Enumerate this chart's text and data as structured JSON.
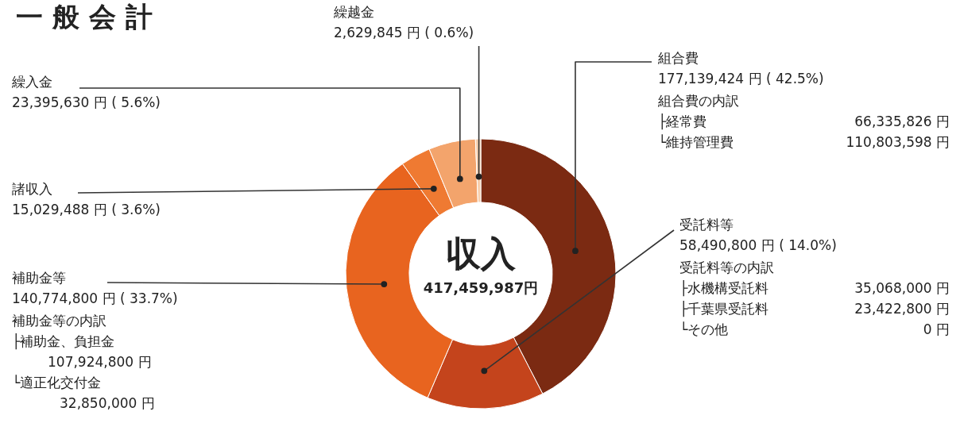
{
  "chart_data": {
    "type": "donut",
    "title": "一 般 会 計",
    "categories": [
      "組合費",
      "受託料等",
      "補助金等",
      "諸収入",
      "繰入金",
      "繰越金"
    ],
    "values": [
      177139424,
      58490800,
      140774800,
      15029488,
      23395630,
      2629845
    ],
    "colors": [
      "#7b2a12",
      "#c4441c",
      "#e8641f",
      "#ef7a32",
      "#f3a46c",
      "#f7cfae"
    ],
    "value_labels": [
      "177,139,424 円 ( 42.5%)",
      "58,490,800 円 ( 14.0%)",
      "140,774,800 円 ( 33.7%)",
      "15,029,488 円 ( 3.6%)",
      "23,395,630 円 ( 5.6%)",
      "2,629,845 円 ( 0.6%)"
    ],
    "annotations": [
      "収入",
      "417,459,987円",
      "組合費の内訳",
      "├経常費",
      "66,335,826 円",
      "└維持管理費",
      "110,803,598 円",
      "受託料等の内訳",
      "├水機構受託料",
      "35,068,000 円",
      "├千葉県受託料",
      "23,422,800 円",
      "└その他",
      "0 円",
      "補助金等の内訳",
      "├補助金、負担金",
      "107,924,800 円",
      "└適正化交付金",
      "32,850,000 円"
    ]
  }
}
